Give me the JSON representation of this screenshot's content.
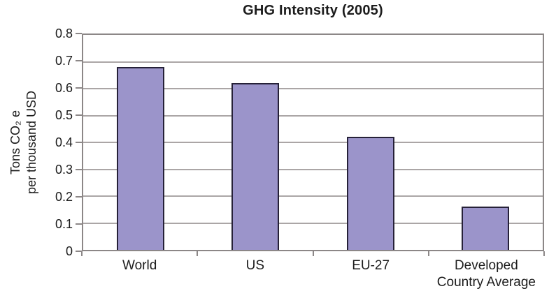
{
  "window": {
    "background": "#ffffff"
  },
  "colors": {
    "bar_fill": "#9b94ca",
    "bar_border": "#262138",
    "gridline": "#aba6a6",
    "axis": "#8c8787",
    "text": "#1c1c1c"
  },
  "chart_data": {
    "type": "bar",
    "title": "GHG Intensity (2005)",
    "categories": [
      "World",
      "US",
      "EU-27",
      "Developed Country Average"
    ],
    "values": [
      0.68,
      0.62,
      0.42,
      0.16
    ],
    "xlabel": "",
    "ylabel": "Tons CO₂ e per thousand USD",
    "ylabel_lines": [
      "Tons CO₂ e",
      "per thousand USD"
    ],
    "ylim": [
      0,
      0.8
    ],
    "ytick_step": 0.1,
    "ytick_labels": [
      "0.8",
      "0.7",
      "0.6",
      "0.5",
      "0.4",
      "0.3",
      "0.2",
      "0.1",
      "0"
    ],
    "grid": "horizontal",
    "legend": "none"
  }
}
